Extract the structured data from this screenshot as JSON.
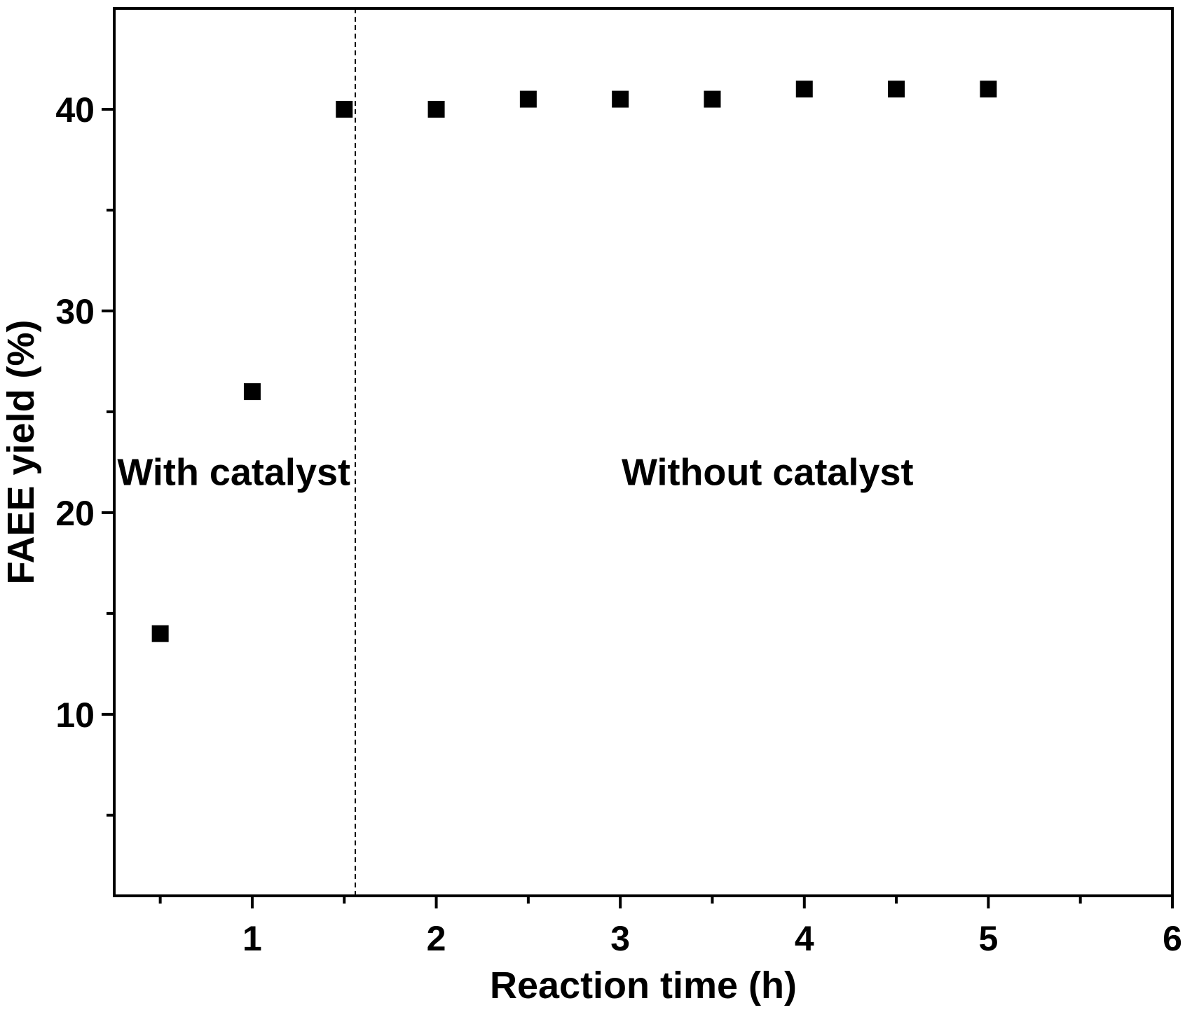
{
  "chart_data": {
    "type": "scatter",
    "xlabel": "Reaction time (h)",
    "ylabel": "FAEE yield (%)",
    "xlim": [
      0.25,
      6
    ],
    "ylim": [
      1,
      45
    ],
    "x_ticks_major": [
      1,
      2,
      3,
      4,
      5,
      6
    ],
    "x_ticks_minor": [
      0.5,
      1.5,
      2.5,
      3.5,
      4.5,
      5.5
    ],
    "y_ticks_major": [
      10,
      20,
      30,
      40
    ],
    "y_ticks_minor": [
      5,
      15,
      25,
      35
    ],
    "grid": false,
    "marker": "square",
    "marker_color": "#000000",
    "divider_x": 1.56,
    "series": [
      {
        "x": [
          0.5,
          1.0,
          1.5,
          2.0,
          2.5,
          3.0,
          3.5,
          4.0,
          4.5,
          5.0
        ],
        "y": [
          14,
          26,
          40,
          40,
          40.5,
          40.5,
          40.5,
          41,
          41,
          41
        ]
      }
    ],
    "annotations": [
      {
        "text": "With catalyst",
        "x": 0.9,
        "y": 22
      },
      {
        "text": "Without catalyst",
        "x": 3.8,
        "y": 22
      }
    ]
  }
}
